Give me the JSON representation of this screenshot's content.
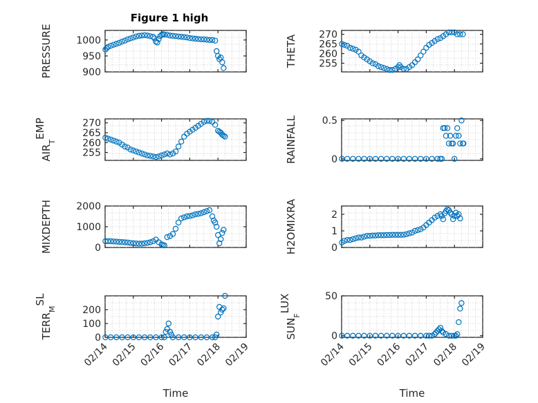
{
  "figure": {
    "title": "Figure 1 high",
    "marker_color": "#0072BD",
    "x_tick_labels": [
      "02/14",
      "02/15",
      "02/16",
      "02/17",
      "02/18",
      "02/19"
    ]
  },
  "chart_data": [
    {
      "id": "pressure",
      "type": "scatter",
      "title": "Figure 1 high",
      "ylabel_main": "PRESSURE",
      "ylabel_sub": "",
      "xlabel": "",
      "xlim": [
        0,
        5
      ],
      "ylim": [
        900,
        1030
      ],
      "yticks": [
        900,
        950,
        1000
      ],
      "grid": true,
      "x": [
        0.01,
        0.05,
        0.1,
        0.2,
        0.3,
        0.4,
        0.5,
        0.6,
        0.7,
        0.8,
        0.9,
        1.0,
        1.1,
        1.2,
        1.3,
        1.4,
        1.5,
        1.6,
        1.7,
        1.75,
        1.8,
        1.85,
        1.9,
        1.95,
        2.0,
        2.05,
        2.1,
        2.2,
        2.3,
        2.4,
        2.5,
        2.6,
        2.7,
        2.8,
        2.9,
        3.0,
        3.1,
        3.2,
        3.3,
        3.4,
        3.5,
        3.6,
        3.7,
        3.8,
        3.9,
        3.95,
        4.0,
        4.05,
        4.1,
        4.15,
        4.2
      ],
      "y": [
        970,
        974,
        978,
        982,
        985,
        988,
        991,
        995,
        998,
        1002,
        1005,
        1008,
        1011,
        1013,
        1014,
        1015,
        1014,
        1012,
        1010,
        1005,
        995,
        992,
        1003,
        1012,
        1016,
        1018,
        1017,
        1016,
        1014,
        1013,
        1012,
        1011,
        1010,
        1009,
        1008,
        1006,
        1005,
        1004,
        1003,
        1002,
        1002,
        1001,
        1000,
        1000,
        998,
        965,
        950,
        940,
        945,
        930,
        912
      ]
    },
    {
      "id": "theta",
      "type": "scatter",
      "ylabel_main": "THETA",
      "ylabel_sub": "",
      "xlabel": "",
      "xlim": [
        0,
        5
      ],
      "ylim": [
        250.5,
        272
      ],
      "yticks": [
        255,
        260,
        265,
        270
      ],
      "grid": true,
      "x": [
        0.01,
        0.1,
        0.2,
        0.3,
        0.4,
        0.5,
        0.6,
        0.7,
        0.8,
        0.9,
        1.0,
        1.1,
        1.2,
        1.3,
        1.4,
        1.5,
        1.6,
        1.7,
        1.8,
        1.9,
        2.0,
        2.05,
        2.1,
        2.2,
        2.3,
        2.4,
        2.5,
        2.6,
        2.7,
        2.8,
        2.9,
        3.0,
        3.1,
        3.2,
        3.3,
        3.4,
        3.5,
        3.6,
        3.7,
        3.8,
        3.9,
        4.0,
        4.1,
        4.2,
        4.3
      ],
      "y": [
        265,
        264.5,
        264,
        263,
        262.5,
        262,
        261,
        259,
        258,
        257,
        256,
        255,
        254.5,
        253.5,
        253,
        252.5,
        252,
        251.5,
        251.5,
        252,
        253,
        254,
        253,
        252,
        252,
        253,
        254,
        255.5,
        257,
        259,
        261,
        263,
        264.5,
        265.5,
        266.5,
        267.5,
        268,
        269,
        270,
        271,
        271,
        271,
        270,
        270,
        270
      ]
    },
    {
      "id": "air_temp",
      "type": "scatter",
      "ylabel_main": "AIR",
      "ylabel_sub": "T",
      "ylabel_tail": "EMP",
      "xlabel": "",
      "xlim": [
        0,
        5
      ],
      "ylim": [
        251,
        272
      ],
      "yticks": [
        255,
        260,
        265,
        270
      ],
      "grid": true,
      "x": [
        0.01,
        0.1,
        0.2,
        0.3,
        0.4,
        0.5,
        0.6,
        0.7,
        0.8,
        0.9,
        1.0,
        1.1,
        1.2,
        1.3,
        1.4,
        1.5,
        1.6,
        1.7,
        1.8,
        1.9,
        2.0,
        2.1,
        2.2,
        2.3,
        2.4,
        2.5,
        2.6,
        2.7,
        2.8,
        2.9,
        3.0,
        3.1,
        3.2,
        3.3,
        3.4,
        3.5,
        3.6,
        3.7,
        3.8,
        3.9,
        4.0,
        4.05,
        4.1,
        4.15,
        4.2,
        4.25
      ],
      "y": [
        262.5,
        262,
        261.5,
        261,
        260.5,
        260,
        259,
        258,
        257.5,
        256.5,
        256,
        255.5,
        255,
        254.5,
        254,
        253.5,
        253.3,
        253,
        252.7,
        253,
        253.5,
        254,
        254.5,
        254,
        254.5,
        255.5,
        258,
        260.5,
        263,
        264.5,
        265.5,
        266.5,
        267.5,
        268.5,
        269.5,
        270.5,
        271,
        271,
        270.5,
        269,
        266,
        265.5,
        265,
        264,
        263.5,
        263
      ]
    },
    {
      "id": "rainfall",
      "type": "scatter",
      "ylabel_main": "RAINFALL",
      "ylabel_sub": "",
      "xlabel": "",
      "xlim": [
        0,
        5
      ],
      "ylim": [
        -0.02,
        0.52
      ],
      "yticks": [
        0,
        0.5
      ],
      "yticklabels": [
        "0",
        "0.5"
      ],
      "grid": true,
      "x": [
        0.01,
        0.2,
        0.4,
        0.6,
        0.8,
        1.0,
        1.2,
        1.4,
        1.6,
        1.8,
        2.0,
        2.2,
        2.4,
        2.6,
        2.8,
        3.0,
        3.2,
        3.4,
        3.5,
        3.55,
        3.6,
        3.65,
        3.7,
        3.75,
        3.8,
        3.85,
        3.9,
        3.95,
        4.0,
        4.05,
        4.1,
        4.15,
        4.2,
        4.25,
        4.3,
        4.32
      ],
      "y": [
        0,
        0,
        0,
        0,
        0,
        0,
        0,
        0,
        0,
        0,
        0,
        0,
        0,
        0,
        0,
        0,
        0,
        0,
        0,
        0,
        0.4,
        0.4,
        0.3,
        0.4,
        0.2,
        0.3,
        0.2,
        0.2,
        0,
        0.3,
        0.4,
        0.3,
        0.2,
        0.5,
        0.2,
        0.2
      ]
    },
    {
      "id": "mixdepth",
      "type": "scatter",
      "ylabel_main": "MIXDEPTH",
      "ylabel_sub": "",
      "xlabel": "",
      "xlim": [
        0,
        5
      ],
      "ylim": [
        0,
        2000
      ],
      "yticks": [
        0,
        1000,
        2000
      ],
      "grid": true,
      "x": [
        0.01,
        0.1,
        0.2,
        0.3,
        0.4,
        0.5,
        0.6,
        0.7,
        0.8,
        0.9,
        1.0,
        1.1,
        1.2,
        1.3,
        1.4,
        1.5,
        1.6,
        1.7,
        1.8,
        1.9,
        2.0,
        2.05,
        2.1,
        2.2,
        2.3,
        2.4,
        2.5,
        2.6,
        2.7,
        2.8,
        2.9,
        3.0,
        3.1,
        3.2,
        3.3,
        3.4,
        3.5,
        3.6,
        3.7,
        3.8,
        3.85,
        3.9,
        3.95,
        4.0,
        4.05,
        4.1,
        4.15,
        4.2
      ],
      "y": [
        300,
        300,
        300,
        290,
        280,
        270,
        260,
        250,
        240,
        220,
        200,
        190,
        180,
        180,
        200,
        220,
        250,
        300,
        380,
        250,
        150,
        120,
        100,
        500,
        550,
        650,
        900,
        1200,
        1400,
        1450,
        1500,
        1520,
        1550,
        1600,
        1620,
        1650,
        1700,
        1750,
        1800,
        1500,
        1300,
        1200,
        1000,
        600,
        200,
        400,
        700,
        850
      ]
    },
    {
      "id": "h2omixra",
      "type": "scatter",
      "ylabel_main": "H2OMIXRA",
      "ylabel_sub": "",
      "xlabel": "",
      "xlim": [
        0,
        5
      ],
      "ylim": [
        0,
        2.5
      ],
      "yticks": [
        0,
        1,
        2
      ],
      "grid": true,
      "x": [
        0.01,
        0.1,
        0.2,
        0.3,
        0.4,
        0.5,
        0.6,
        0.7,
        0.8,
        0.9,
        1.0,
        1.1,
        1.2,
        1.3,
        1.4,
        1.5,
        1.6,
        1.7,
        1.8,
        1.9,
        2.0,
        2.1,
        2.2,
        2.3,
        2.4,
        2.5,
        2.6,
        2.7,
        2.8,
        2.9,
        3.0,
        3.1,
        3.2,
        3.3,
        3.4,
        3.5,
        3.55,
        3.6,
        3.65,
        3.7,
        3.75,
        3.8,
        3.85,
        3.9,
        3.95,
        4.0,
        4.05,
        4.1,
        4.15,
        4.2
      ],
      "y": [
        0.3,
        0.4,
        0.45,
        0.45,
        0.5,
        0.55,
        0.6,
        0.6,
        0.65,
        0.7,
        0.7,
        0.72,
        0.72,
        0.74,
        0.74,
        0.74,
        0.75,
        0.75,
        0.76,
        0.76,
        0.76,
        0.76,
        0.77,
        0.8,
        0.85,
        0.9,
        1.0,
        1.05,
        1.1,
        1.2,
        1.35,
        1.5,
        1.65,
        1.8,
        1.9,
        2.0,
        1.9,
        1.7,
        2.05,
        2.2,
        2.3,
        2.25,
        2.1,
        2.0,
        1.7,
        1.9,
        2.1,
        1.9,
        2.0,
        1.75
      ]
    },
    {
      "id": "terr_msl",
      "type": "scatter",
      "ylabel_main": "TERR",
      "ylabel_sub": "M",
      "ylabel_tail": "SL",
      "xlabel": "Time",
      "xlim": [
        0,
        5
      ],
      "ylim": [
        0,
        300
      ],
      "yticks": [
        0,
        100,
        200
      ],
      "grid": true,
      "x": [
        0.01,
        0.2,
        0.4,
        0.6,
        0.8,
        1.0,
        1.2,
        1.4,
        1.6,
        1.8,
        2.0,
        2.1,
        2.15,
        2.2,
        2.25,
        2.3,
        2.35,
        2.4,
        2.6,
        2.8,
        3.0,
        3.2,
        3.4,
        3.6,
        3.8,
        3.9,
        3.95,
        4.0,
        4.05,
        4.1,
        4.15,
        4.2,
        4.25
      ],
      "y": [
        0,
        0,
        0,
        0,
        0,
        0,
        0,
        0,
        0,
        0,
        0,
        0,
        40,
        60,
        100,
        40,
        20,
        0,
        0,
        0,
        0,
        0,
        0,
        0,
        0,
        0,
        20,
        150,
        220,
        180,
        200,
        210,
        300
      ]
    },
    {
      "id": "sun_flux",
      "type": "scatter",
      "ylabel_main": "SUN",
      "ylabel_sub": "F",
      "ylabel_tail": "LUX",
      "xlabel": "Time",
      "xlim": [
        0,
        5
      ],
      "ylim": [
        -2,
        50
      ],
      "yticks": [
        0,
        50
      ],
      "grid": true,
      "x": [
        0.01,
        0.2,
        0.4,
        0.6,
        0.8,
        1.0,
        1.2,
        1.4,
        1.6,
        1.8,
        2.0,
        2.2,
        2.4,
        2.6,
        2.8,
        3.0,
        3.1,
        3.2,
        3.3,
        3.35,
        3.4,
        3.45,
        3.5,
        3.55,
        3.6,
        3.7,
        3.8,
        3.9,
        4.0,
        4.05,
        4.1,
        4.15,
        4.2,
        4.25
      ],
      "y": [
        0,
        0,
        0,
        0,
        0,
        0,
        0,
        0,
        0,
        0,
        0,
        0,
        0,
        0,
        0,
        0,
        0,
        0,
        2,
        4,
        6,
        8,
        10,
        6,
        4,
        2,
        0,
        0,
        0,
        0,
        2,
        17,
        34,
        41
      ]
    }
  ]
}
